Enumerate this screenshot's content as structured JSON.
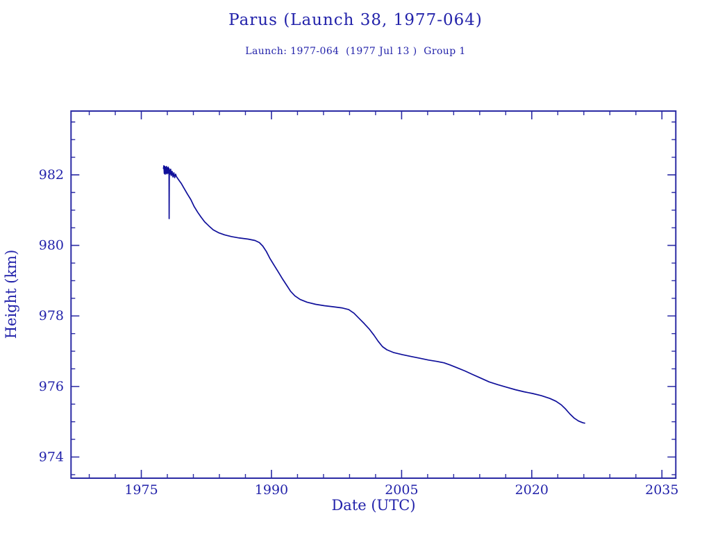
{
  "header": {
    "title": "Parus (Launch 38, 1977-064)",
    "subtitle": "Launch: 1977-064  (1977 Jul 13 )  Group 1"
  },
  "colors": {
    "ink": "#2222aa",
    "frame": "#2a2aa4",
    "curve": "#0f0f9a",
    "background": "#ffffff"
  },
  "chart_data": {
    "type": "line",
    "title": "Parus (Launch 38, 1977-064)",
    "subtitle": "Launch: 1977-064  (1977 Jul 13 )  Group 1",
    "xlabel": "Date (UTC)",
    "ylabel": "Height (km)",
    "xlim": [
      1966.9,
      2036.6
    ],
    "ylim": [
      973.4,
      983.81
    ],
    "x_major_ticks": [
      1975,
      1990,
      2005,
      2020,
      2035
    ],
    "x_minor_step_years": 3,
    "y_major_ticks": [
      974,
      976,
      978,
      980,
      982
    ],
    "y_minor_step_km": 0.5,
    "grid": false,
    "legend": "none",
    "series": [
      {
        "name": "orbit-height-km",
        "points": [
          [
            1977.55,
            982.18
          ],
          [
            1977.6,
            982.26
          ],
          [
            1977.65,
            982.04
          ],
          [
            1977.7,
            982.24
          ],
          [
            1977.75,
            982.02
          ],
          [
            1977.8,
            982.22
          ],
          [
            1977.85,
            982.05
          ],
          [
            1977.9,
            982.24
          ],
          [
            1977.95,
            982.03
          ],
          [
            1978.0,
            982.2
          ],
          [
            1978.05,
            982.05
          ],
          [
            1978.1,
            982.22
          ],
          [
            1978.15,
            982.04
          ],
          [
            1978.19,
            982.18
          ],
          [
            1978.21,
            980.76
          ],
          [
            1978.23,
            982.15
          ],
          [
            1978.3,
            982.02
          ],
          [
            1978.38,
            982.16
          ],
          [
            1978.45,
            981.98
          ],
          [
            1978.55,
            982.1
          ],
          [
            1978.65,
            981.94
          ],
          [
            1978.75,
            982.06
          ],
          [
            1978.85,
            981.92
          ],
          [
            1978.95,
            982.02
          ],
          [
            1979.05,
            981.95
          ],
          [
            1979.3,
            981.86
          ],
          [
            1979.6,
            981.76
          ],
          [
            1979.9,
            981.63
          ],
          [
            1980.3,
            981.46
          ],
          [
            1980.7,
            981.3
          ],
          [
            1981.1,
            981.1
          ],
          [
            1981.5,
            980.94
          ],
          [
            1981.9,
            980.8
          ],
          [
            1982.3,
            980.67
          ],
          [
            1982.8,
            980.55
          ],
          [
            1983.3,
            980.44
          ],
          [
            1983.9,
            980.36
          ],
          [
            1984.6,
            980.3
          ],
          [
            1985.4,
            980.25
          ],
          [
            1986.3,
            980.21
          ],
          [
            1987.3,
            980.18
          ],
          [
            1988.1,
            980.14
          ],
          [
            1988.6,
            980.08
          ],
          [
            1989.0,
            979.98
          ],
          [
            1989.4,
            979.83
          ],
          [
            1989.8,
            979.64
          ],
          [
            1990.3,
            979.44
          ],
          [
            1990.8,
            979.24
          ],
          [
            1991.3,
            979.04
          ],
          [
            1991.8,
            978.85
          ],
          [
            1992.2,
            978.7
          ],
          [
            1992.7,
            978.57
          ],
          [
            1993.3,
            978.47
          ],
          [
            1994.1,
            978.39
          ],
          [
            1995.1,
            978.33
          ],
          [
            1996.1,
            978.29
          ],
          [
            1997.1,
            978.26
          ],
          [
            1998.1,
            978.23
          ],
          [
            1998.9,
            978.18
          ],
          [
            1999.5,
            978.08
          ],
          [
            2000.1,
            977.93
          ],
          [
            2000.7,
            977.78
          ],
          [
            2001.3,
            977.62
          ],
          [
            2001.8,
            977.46
          ],
          [
            2002.3,
            977.28
          ],
          [
            2002.8,
            977.13
          ],
          [
            2003.3,
            977.04
          ],
          [
            2004.1,
            976.96
          ],
          [
            2005.1,
            976.9
          ],
          [
            2006.1,
            976.85
          ],
          [
            2007.1,
            976.8
          ],
          [
            2008.1,
            976.75
          ],
          [
            2009.1,
            976.71
          ],
          [
            2009.9,
            976.67
          ],
          [
            2010.6,
            976.61
          ],
          [
            2011.4,
            976.53
          ],
          [
            2012.3,
            976.44
          ],
          [
            2013.1,
            976.35
          ],
          [
            2014.1,
            976.24
          ],
          [
            2015.1,
            976.13
          ],
          [
            2016.1,
            976.05
          ],
          [
            2017.1,
            975.98
          ],
          [
            2018.1,
            975.91
          ],
          [
            2019.1,
            975.85
          ],
          [
            2020.1,
            975.8
          ],
          [
            2021.1,
            975.74
          ],
          [
            2022.1,
            975.66
          ],
          [
            2022.8,
            975.58
          ],
          [
            2023.4,
            975.48
          ],
          [
            2023.9,
            975.36
          ],
          [
            2024.4,
            975.22
          ],
          [
            2024.9,
            975.1
          ],
          [
            2025.4,
            975.02
          ],
          [
            2025.9,
            974.97
          ],
          [
            2026.1,
            974.96
          ]
        ]
      }
    ]
  }
}
